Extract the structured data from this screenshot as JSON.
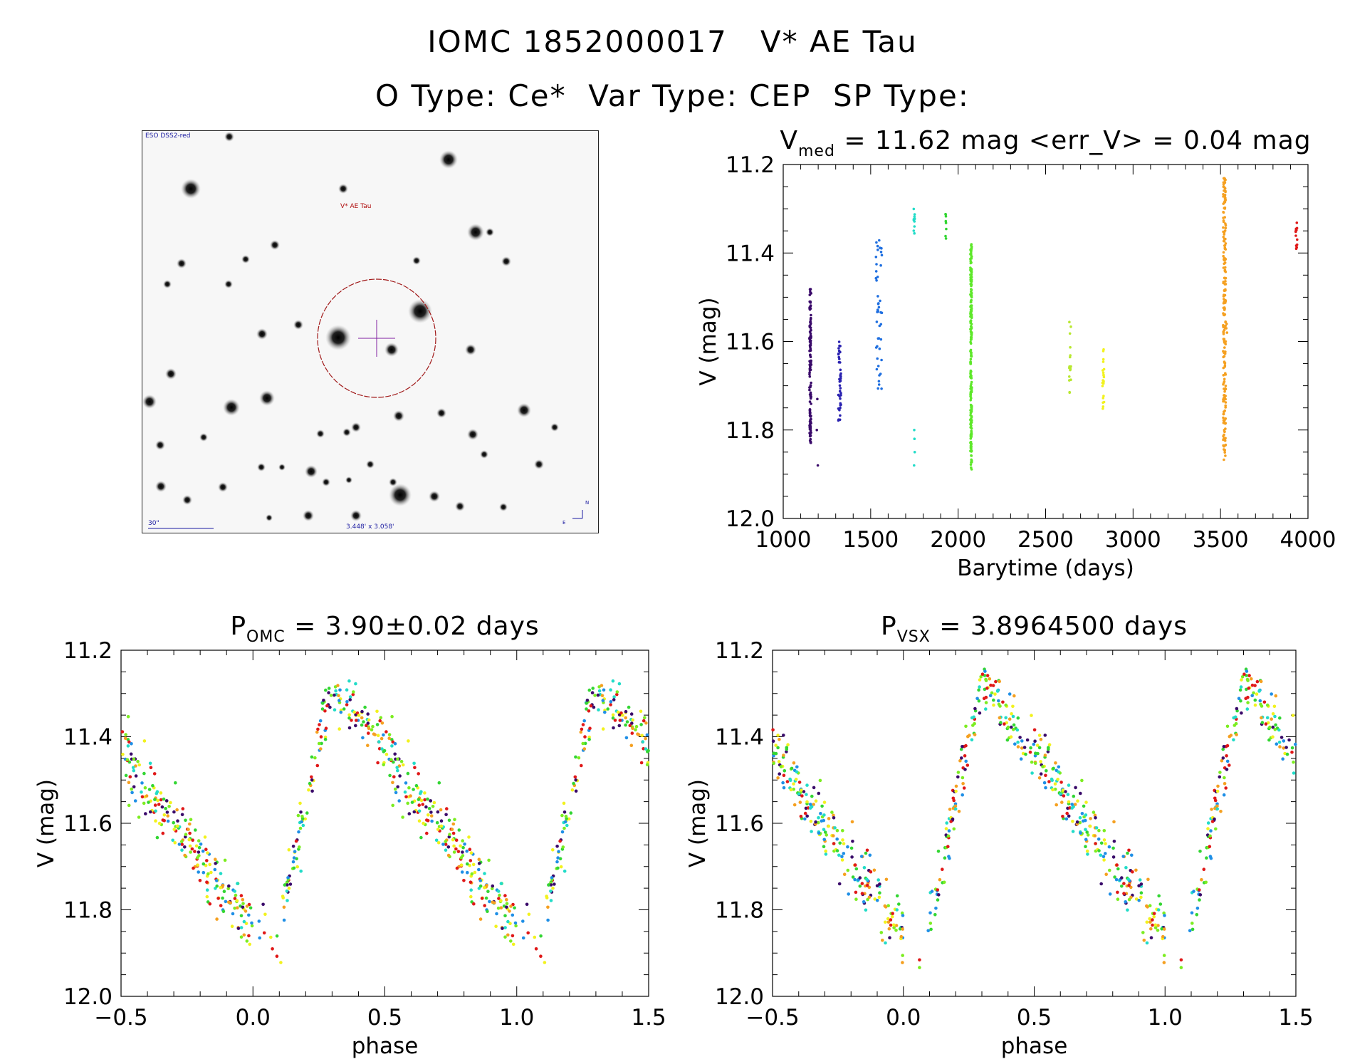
{
  "header": {
    "line1": "IOMC 1852000017   V* AE Tau",
    "line2": "O Type: Ce*  Var Type: CEP  SP Type:"
  },
  "image_panel": {
    "survey_label": "ESO DSS2-red",
    "target_label": "V* AE Tau",
    "scale_label": "30\"",
    "fov_label": "3.448' x 3.058'",
    "compass_n": "N",
    "compass_e": "E"
  },
  "colors": {
    "black": "#000000",
    "indigo": "#3a0a6a",
    "blue": "#1a3ccc",
    "azure": "#1f8fe6",
    "cyan": "#22dcc8",
    "green": "#33d633",
    "bright_green": "#7ced21",
    "yellow_green": "#b8e830",
    "yellow": "#f2f21e",
    "orange": "#f5a020",
    "red": "#e01818"
  },
  "chart_data": [
    {
      "type": "scatter",
      "id": "lightcurve-time",
      "title_main": "V",
      "title_sub": "med",
      "title_rest": " = 11.62 mag <err_V> = 0.04 mag",
      "xlabel": "Barytime (days)",
      "ylabel": "V (mag)",
      "xlim": [
        1000,
        4000
      ],
      "ylim": [
        12.0,
        11.2
      ],
      "xticks": [
        1000,
        1500,
        2000,
        2500,
        3000,
        3500,
        4000
      ],
      "xtick_labels": [
        "1000",
        "1500",
        "2000",
        "2500",
        "3000",
        "3500",
        "4000"
      ],
      "yticks": [
        11.2,
        11.4,
        11.6,
        11.8,
        12.0
      ],
      "ytick_labels": [
        "11.2",
        "11.4",
        "11.6",
        "11.8",
        "12.0"
      ],
      "series": [
        {
          "name": "epoch1",
          "color": "#3a0a6a",
          "t_range": [
            1150,
            1160
          ],
          "v_range": [
            11.48,
            11.83
          ],
          "n": 140,
          "extra": [
            [
              1195,
              11.73
            ],
            [
              1198,
              11.88
            ],
            [
              1192,
              11.8
            ]
          ]
        },
        {
          "name": "epoch2",
          "color": "#2a22b0",
          "t_range": [
            1315,
            1330
          ],
          "v_range": [
            11.6,
            11.78
          ],
          "n": 40
        },
        {
          "name": "epoch3",
          "color": "#1f6fe0",
          "t_range": [
            1530,
            1565
          ],
          "v_range": [
            11.36,
            11.72
          ],
          "n": 45
        },
        {
          "name": "epoch4",
          "color": "#22dcc8",
          "t_range": [
            1745,
            1752
          ],
          "v_range": [
            11.3,
            11.36
          ],
          "n": 10,
          "extra": [
            [
              1750,
              11.82
            ],
            [
              1748,
              11.88
            ],
            [
              1752,
              11.85
            ],
            [
              1749,
              11.8
            ]
          ]
        },
        {
          "name": "epoch5",
          "color": "#33d633",
          "t_range": [
            1925,
            1932
          ],
          "v_range": [
            11.31,
            11.38
          ],
          "n": 8
        },
        {
          "name": "epoch6",
          "color": "#5ee82a",
          "t_range": [
            2070,
            2078
          ],
          "v_range": [
            11.38,
            11.89
          ],
          "n": 220
        },
        {
          "name": "epoch7",
          "color": "#b8e830",
          "t_range": [
            2635,
            2645
          ],
          "v_range": [
            11.55,
            11.72
          ],
          "n": 18
        },
        {
          "name": "epoch8",
          "color": "#f2f21e",
          "t_range": [
            2825,
            2835
          ],
          "v_range": [
            11.61,
            11.76
          ],
          "n": 22
        },
        {
          "name": "epoch9",
          "color": "#f5a020",
          "t_range": [
            3515,
            3530
          ],
          "v_range": [
            11.23,
            11.87
          ],
          "n": 200,
          "extra": [
            [
              3535,
              11.56
            ],
            [
              3537,
              11.58
            ],
            [
              3533,
              11.57
            ]
          ]
        },
        {
          "name": "epoch10",
          "color": "#e01818",
          "t_range": [
            3930,
            3938
          ],
          "v_range": [
            11.33,
            11.4
          ],
          "n": 14
        }
      ]
    },
    {
      "type": "scatter",
      "id": "phase-omc",
      "title_main": "P",
      "title_sub": "OMC",
      "title_rest": " = 3.90±0.02 days",
      "xlabel": "phase",
      "ylabel": "V (mag)",
      "xlim": [
        -0.5,
        1.5
      ],
      "ylim": [
        12.0,
        11.2
      ],
      "xticks": [
        -0.5,
        0.0,
        0.5,
        1.0,
        1.5
      ],
      "xtick_labels": [
        "−0.5",
        "0.0",
        "0.5",
        "1.0",
        "1.5"
      ],
      "yticks": [
        11.2,
        11.4,
        11.6,
        11.8,
        12.0
      ],
      "ytick_labels": [
        "11.2",
        "11.4",
        "11.6",
        "11.8",
        "12.0"
      ],
      "period_days": 3.9,
      "phase_curve": {
        "min_phase": 0.0,
        "min_mag": 11.85,
        "max_phase": 0.3,
        "max_mag": 11.27
      },
      "phase_color_bands": [
        "#e01818",
        "#f5a020",
        "#7ced21",
        "#3a0a6a",
        "#1f8fe6",
        "#22dcc8",
        "#f2f21e",
        "#33d633"
      ]
    },
    {
      "type": "scatter",
      "id": "phase-vsx",
      "title_main": "P",
      "title_sub": "VSX",
      "title_rest": " = 3.8964500 days",
      "xlabel": "phase",
      "ylabel": "V (mag)",
      "xlim": [
        -0.5,
        1.5
      ],
      "ylim": [
        12.0,
        11.2
      ],
      "xticks": [
        -0.5,
        0.0,
        0.5,
        1.0,
        1.5
      ],
      "xtick_labels": [
        "−0.5",
        "0.0",
        "0.5",
        "1.0",
        "1.5"
      ],
      "yticks": [
        11.2,
        11.4,
        11.6,
        11.8,
        12.0
      ],
      "ytick_labels": [
        "11.2",
        "11.4",
        "11.6",
        "11.8",
        "12.0"
      ],
      "period_days": 3.89645,
      "phase_curve": {
        "min_phase": 0.0,
        "min_mag": 11.85,
        "max_phase": 0.3,
        "max_mag": 11.27
      },
      "phase_color_bands": [
        "#e01818",
        "#f5a020",
        "#7ced21",
        "#3a0a6a",
        "#1f8fe6",
        "#22dcc8",
        "#f2f21e",
        "#33d633"
      ]
    }
  ]
}
